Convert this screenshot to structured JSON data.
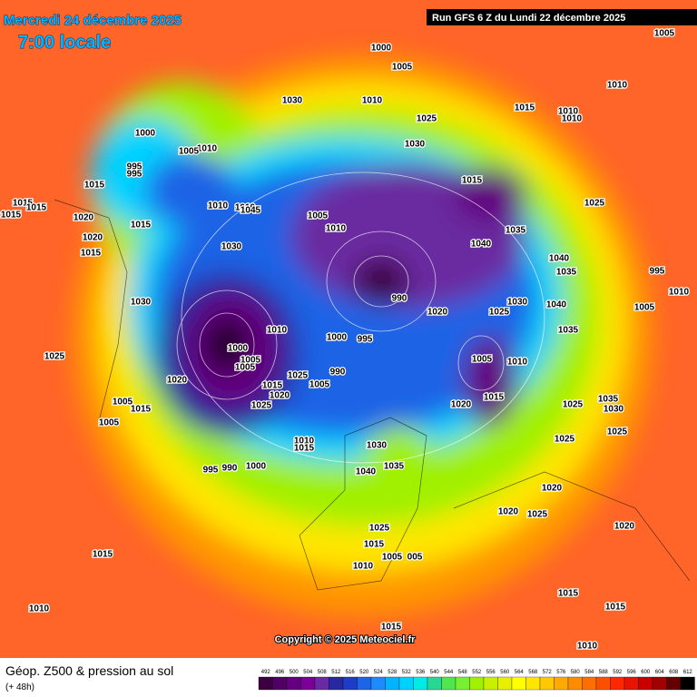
{
  "header": {
    "date": "Mercredi 24 décembre 2025",
    "time": "7:00 locale",
    "run": "Run GFS 6 Z du Lundi 22 décembre 2025"
  },
  "copyright": "Copyright © 2025 Meteociel.fr",
  "footer": {
    "title": "Géop. Z500 & pression au sol",
    "lead": "(+ 48h)"
  },
  "legend": {
    "values": [
      492,
      496,
      500,
      504,
      508,
      512,
      516,
      520,
      524,
      528,
      532,
      536,
      540,
      544,
      548,
      552,
      556,
      560,
      564,
      568,
      572,
      576,
      580,
      584,
      588,
      592,
      596,
      600,
      604,
      608,
      612
    ],
    "colors": [
      "#3c0040",
      "#500064",
      "#640080",
      "#7a0096",
      "#6a2aa0",
      "#2828a0",
      "#1e3cc8",
      "#1e64e6",
      "#1e8cff",
      "#00b4ff",
      "#00d2ff",
      "#00ebe6",
      "#28d796",
      "#50e650",
      "#78f032",
      "#a0f000",
      "#c8f000",
      "#e6f000",
      "#ffff00",
      "#ffe600",
      "#ffc800",
      "#ffaa00",
      "#ff8c00",
      "#ff6e00",
      "#ff5000",
      "#ff2800",
      "#e61400",
      "#c80000",
      "#a00000",
      "#640000",
      "#000000"
    ]
  },
  "pressure_labels": [
    "1000",
    "1005",
    "1005",
    "1010",
    "1030",
    "1010",
    "1025",
    "1015",
    "1010",
    "1010",
    "1000",
    "1010",
    "1005",
    "1030",
    "995",
    "995",
    "1015",
    "1015",
    "1015",
    "1015",
    "1015",
    "1025",
    "1010",
    "1010",
    "1045",
    "1005",
    "1020",
    "1010",
    "1015",
    "1020",
    "1035",
    "1040",
    "1030",
    "1015",
    "1040",
    "1035",
    "995",
    "1010",
    "1005",
    "1030",
    "1040",
    "1025",
    "1020",
    "990",
    "1030",
    "1010",
    "1000",
    "995",
    "1035",
    "1000",
    "1005",
    "1005",
    "1025",
    "1005",
    "1010",
    "1020",
    "990",
    "1025",
    "1015",
    "1005",
    "1020",
    "1025",
    "1015",
    "1020",
    "1025",
    "1035",
    "1030",
    "1005",
    "1015",
    "1005",
    "1025",
    "1010",
    "1015",
    "1030",
    "1025",
    "995",
    "990",
    "1000",
    "1035",
    "1040",
    "1020",
    "1020",
    "1025",
    "1025",
    "1020",
    "1015",
    "1015",
    "1005",
    "005",
    "1010",
    "1010",
    "1015",
    "1015",
    "1015",
    "1010"
  ]
}
